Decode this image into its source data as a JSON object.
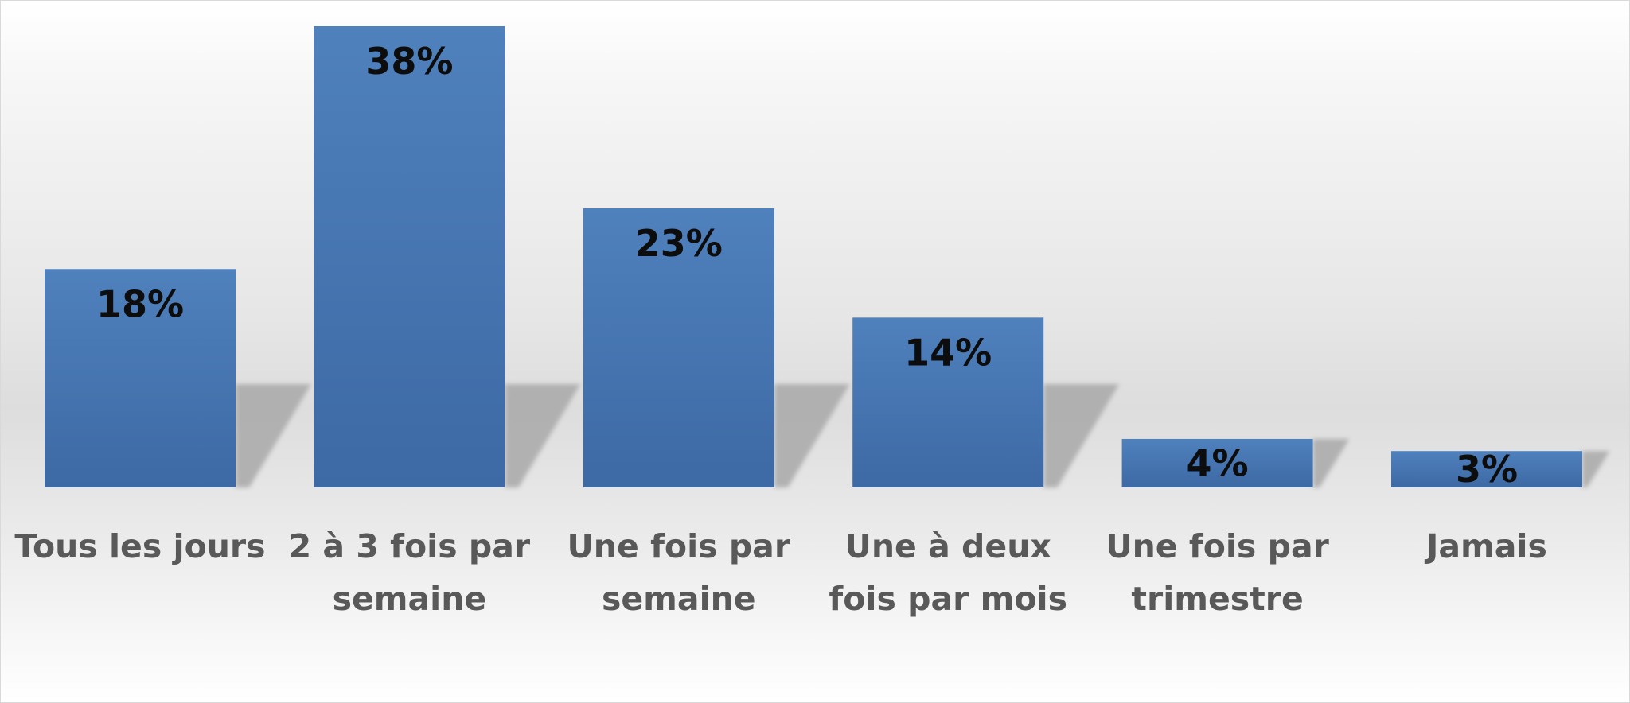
{
  "chart_data": {
    "type": "bar",
    "categories": [
      [
        "Tous les jours"
      ],
      [
        "2 à 3 fois par",
        "semaine"
      ],
      [
        "Une fois par",
        "semaine"
      ],
      [
        "Une à deux",
        "fois par mois"
      ],
      [
        "Une fois par",
        "trimestre"
      ],
      [
        "Jamais"
      ]
    ],
    "values": [
      18,
      38,
      23,
      14,
      4,
      3
    ],
    "value_labels": [
      "18%",
      "38%",
      "23%",
      "14%",
      "4%",
      "3%"
    ],
    "ylim": [
      0,
      38
    ],
    "grid": false,
    "legend": "none",
    "colors": {
      "bar_top": "#4f81bd",
      "bar_bottom": "#3d69a4",
      "shadow": "#a9a9a9"
    }
  }
}
